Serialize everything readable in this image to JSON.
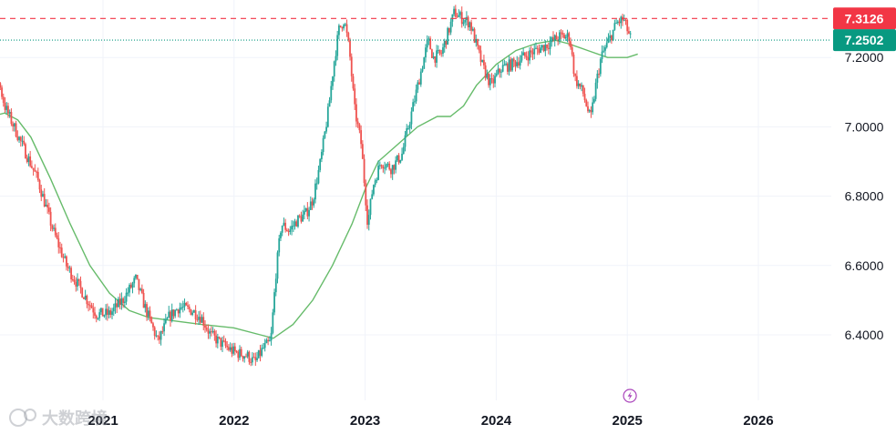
{
  "chart_data": {
    "type": "candlestick",
    "title": "",
    "xlabel": "",
    "ylabel": "",
    "ylim": [
      6.25,
      7.36
    ],
    "xlim": [
      2020.0,
      2026.5
    ],
    "y_ticks": [
      "7.2000",
      "7.0000",
      "6.8000",
      "6.6000",
      "6.4000"
    ],
    "y_tick_values": [
      7.2,
      7.0,
      6.8,
      6.6,
      6.4
    ],
    "x_ticks": [
      "2021",
      "2022",
      "2023",
      "2024",
      "2025",
      "2026"
    ],
    "x_tick_values": [
      2021,
      2022,
      2023,
      2024,
      2025,
      2026
    ],
    "grid": true,
    "up_color": "#26a69a",
    "down_color": "#ef5350",
    "ma_color": "#66bb6a",
    "price_path": [
      [
        2020.0,
        7.1
      ],
      [
        2020.1,
        7.12
      ],
      [
        2020.18,
        7.17
      ],
      [
        2020.25,
        7.06
      ],
      [
        2020.38,
        6.95
      ],
      [
        2020.5,
        6.85
      ],
      [
        2020.62,
        6.7
      ],
      [
        2020.72,
        6.6
      ],
      [
        2020.8,
        6.55
      ],
      [
        2020.88,
        6.5
      ],
      [
        2020.95,
        6.46
      ],
      [
        2021.05,
        6.46
      ],
      [
        2021.15,
        6.5
      ],
      [
        2021.25,
        6.56
      ],
      [
        2021.32,
        6.48
      ],
      [
        2021.42,
        6.38
      ],
      [
        2021.5,
        6.45
      ],
      [
        2021.58,
        6.48
      ],
      [
        2021.68,
        6.47
      ],
      [
        2021.75,
        6.45
      ],
      [
        2021.82,
        6.4
      ],
      [
        2021.92,
        6.37
      ],
      [
        2022.0,
        6.35
      ],
      [
        2022.1,
        6.34
      ],
      [
        2022.16,
        6.32
      ],
      [
        2022.22,
        6.36
      ],
      [
        2022.28,
        6.38
      ],
      [
        2022.32,
        6.58
      ],
      [
        2022.36,
        6.72
      ],
      [
        2022.42,
        6.7
      ],
      [
        2022.48,
        6.73
      ],
      [
        2022.55,
        6.75
      ],
      [
        2022.6,
        6.79
      ],
      [
        2022.66,
        6.9
      ],
      [
        2022.72,
        7.05
      ],
      [
        2022.76,
        7.18
      ],
      [
        2022.8,
        7.28
      ],
      [
        2022.84,
        7.31
      ],
      [
        2022.88,
        7.22
      ],
      [
        2022.92,
        7.05
      ],
      [
        2022.97,
        6.95
      ],
      [
        2023.02,
        6.72
      ],
      [
        2023.06,
        6.83
      ],
      [
        2023.12,
        6.9
      ],
      [
        2023.2,
        6.88
      ],
      [
        2023.28,
        6.92
      ],
      [
        2023.36,
        7.05
      ],
      [
        2023.42,
        7.15
      ],
      [
        2023.48,
        7.25
      ],
      [
        2023.52,
        7.2
      ],
      [
        2023.58,
        7.21
      ],
      [
        2023.64,
        7.28
      ],
      [
        2023.68,
        7.33
      ],
      [
        2023.75,
        7.31
      ],
      [
        2023.8,
        7.3
      ],
      [
        2023.86,
        7.22
      ],
      [
        2023.9,
        7.17
      ],
      [
        2023.96,
        7.12
      ],
      [
        2024.04,
        7.17
      ],
      [
        2024.12,
        7.18
      ],
      [
        2024.2,
        7.2
      ],
      [
        2024.3,
        7.22
      ],
      [
        2024.4,
        7.24
      ],
      [
        2024.48,
        7.26
      ],
      [
        2024.56,
        7.26
      ],
      [
        2024.6,
        7.14
      ],
      [
        2024.66,
        7.1
      ],
      [
        2024.72,
        7.02
      ],
      [
        2024.76,
        7.12
      ],
      [
        2024.8,
        7.2
      ],
      [
        2024.86,
        7.25
      ],
      [
        2024.92,
        7.3
      ],
      [
        2024.97,
        7.31
      ],
      [
        2025.03,
        7.25
      ]
    ],
    "ma_path": [
      [
        2020.0,
        7.0
      ],
      [
        2020.15,
        7.03
      ],
      [
        2020.25,
        7.04
      ],
      [
        2020.35,
        7.02
      ],
      [
        2020.45,
        6.97
      ],
      [
        2020.6,
        6.85
      ],
      [
        2020.75,
        6.72
      ],
      [
        2020.9,
        6.6
      ],
      [
        2021.05,
        6.52
      ],
      [
        2021.2,
        6.47
      ],
      [
        2021.35,
        6.45
      ],
      [
        2021.55,
        6.44
      ],
      [
        2021.75,
        6.43
      ],
      [
        2022.0,
        6.42
      ],
      [
        2022.2,
        6.4
      ],
      [
        2022.3,
        6.39
      ],
      [
        2022.45,
        6.43
      ],
      [
        2022.6,
        6.5
      ],
      [
        2022.75,
        6.6
      ],
      [
        2022.9,
        6.72
      ],
      [
        2023.0,
        6.82
      ],
      [
        2023.1,
        6.9
      ],
      [
        2023.25,
        6.95
      ],
      [
        2023.4,
        7.0
      ],
      [
        2023.55,
        7.03
      ],
      [
        2023.65,
        7.03
      ],
      [
        2023.75,
        7.06
      ],
      [
        2023.85,
        7.12
      ],
      [
        2024.0,
        7.18
      ],
      [
        2024.15,
        7.22
      ],
      [
        2024.3,
        7.24
      ],
      [
        2024.45,
        7.25
      ],
      [
        2024.55,
        7.24
      ],
      [
        2024.7,
        7.22
      ],
      [
        2024.85,
        7.2
      ],
      [
        2025.0,
        7.2
      ],
      [
        2025.08,
        7.21
      ]
    ],
    "reference_lines": [
      {
        "value": 7.3126,
        "label": "7.3126",
        "style": "dashed",
        "color": "#f23645"
      },
      {
        "value": 7.2502,
        "label": "7.2502",
        "style": "dotted",
        "color": "#089981"
      }
    ],
    "event_marker": {
      "x": 2025.02,
      "icon": "lightning-icon",
      "color": "#ab47bc"
    },
    "watermark": "大数跨境"
  }
}
